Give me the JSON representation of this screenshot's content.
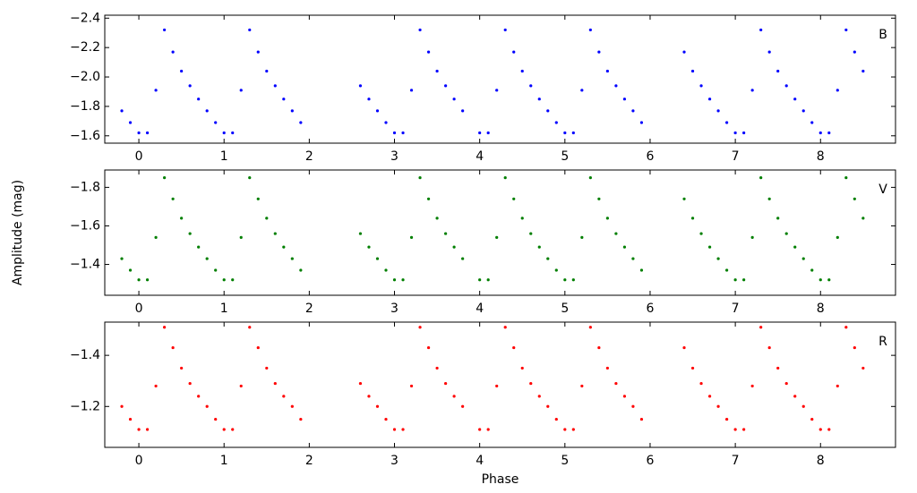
{
  "chart_data": [
    {
      "type": "scatter",
      "xlim": [
        -0.4,
        8.88
      ],
      "ylim": [
        -1.55,
        -2.42
      ],
      "xticks": [
        0,
        1,
        2,
        3,
        4,
        5,
        6,
        7,
        8
      ],
      "yticks": [
        {
          "value": -1.6,
          "label": "−1.6"
        },
        {
          "value": -1.8,
          "label": "−1.8"
        },
        {
          "value": -2.0,
          "label": "−2.0"
        },
        {
          "value": -2.2,
          "label": "−2.2"
        },
        {
          "value": -2.4,
          "label": "−2.4"
        }
      ],
      "series": [
        {
          "name": "B",
          "color": "#0000ff",
          "x": [
            -0.2,
            -0.1,
            0,
            0.1,
            0.2,
            0.3,
            0.4,
            0.5,
            0.6,
            0.7,
            0.8,
            0.9,
            1,
            1.1,
            1.2,
            1.3,
            1.4,
            1.5,
            1.6,
            1.7,
            1.8,
            1.9,
            2.6,
            2.7,
            2.8,
            2.9,
            3,
            3.1,
            3.2,
            3.3,
            3.4,
            3.5,
            3.6,
            3.7,
            3.8,
            4,
            4.1,
            4.2,
            4.3,
            4.4,
            4.5,
            4.6,
            4.7,
            4.8,
            4.9,
            5,
            5.1,
            5.2,
            5.3,
            5.4,
            5.5,
            5.6,
            5.7,
            5.8,
            5.9,
            6.4,
            6.5,
            6.6,
            6.7,
            6.8,
            6.9,
            7,
            7.1,
            7.2,
            7.3,
            7.4,
            7.5,
            7.6,
            7.7,
            7.8,
            7.9,
            8,
            8.1,
            8.2,
            8.3,
            8.4,
            8.5
          ],
          "values": [
            -1.77,
            -1.69,
            -1.62,
            -1.62,
            -1.91,
            -2.32,
            -2.17,
            -2.04,
            -1.94,
            -1.85,
            -1.77,
            -1.69,
            -1.62,
            -1.62,
            -1.91,
            -2.32,
            -2.17,
            -2.04,
            -1.94,
            -1.85,
            -1.77,
            -1.69,
            -1.94,
            -1.85,
            -1.77,
            -1.69,
            -1.62,
            -1.62,
            -1.91,
            -2.32,
            -2.17,
            -2.04,
            -1.94,
            -1.85,
            -1.77,
            -1.62,
            -1.62,
            -1.91,
            -2.32,
            -2.17,
            -2.04,
            -1.94,
            -1.85,
            -1.77,
            -1.69,
            -1.62,
            -1.62,
            -1.91,
            -2.32,
            -2.17,
            -2.04,
            -1.94,
            -1.85,
            -1.77,
            -1.69,
            -2.17,
            -2.04,
            -1.94,
            -1.85,
            -1.77,
            -1.69,
            -1.62,
            -1.62,
            -1.91,
            -2.32,
            -2.17,
            -2.04,
            -1.94,
            -1.85,
            -1.77,
            -1.69,
            -1.62,
            -1.62,
            -1.91,
            -2.32,
            -2.17,
            -2.04
          ]
        }
      ]
    },
    {
      "type": "scatter",
      "xlim": [
        -0.4,
        8.88
      ],
      "ylim": [
        -1.24,
        -1.89
      ],
      "ylabel": "Amplitude (mag)",
      "xticks": [
        0,
        1,
        2,
        3,
        4,
        5,
        6,
        7,
        8
      ],
      "yticks": [
        {
          "value": -1.4,
          "label": "−1.4"
        },
        {
          "value": -1.6,
          "label": "−1.6"
        },
        {
          "value": -1.8,
          "label": "−1.8"
        }
      ],
      "series": [
        {
          "name": "V",
          "color": "#007f00",
          "x": [
            -0.2,
            -0.1,
            0,
            0.1,
            0.2,
            0.3,
            0.4,
            0.5,
            0.6,
            0.7,
            0.8,
            0.9,
            1,
            1.1,
            1.2,
            1.3,
            1.4,
            1.5,
            1.6,
            1.7,
            1.8,
            1.9,
            2.6,
            2.7,
            2.8,
            2.9,
            3,
            3.1,
            3.2,
            3.3,
            3.4,
            3.5,
            3.6,
            3.7,
            3.8,
            4,
            4.1,
            4.2,
            4.3,
            4.4,
            4.5,
            4.6,
            4.7,
            4.8,
            4.9,
            5,
            5.1,
            5.2,
            5.3,
            5.4,
            5.5,
            5.6,
            5.7,
            5.8,
            5.9,
            6.4,
            6.5,
            6.6,
            6.7,
            6.8,
            6.9,
            7,
            7.1,
            7.2,
            7.3,
            7.4,
            7.5,
            7.6,
            7.7,
            7.8,
            7.9,
            8,
            8.1,
            8.2,
            8.3,
            8.4,
            8.5
          ],
          "values": [
            -1.43,
            -1.37,
            -1.32,
            -1.32,
            -1.54,
            -1.85,
            -1.74,
            -1.64,
            -1.56,
            -1.49,
            -1.43,
            -1.37,
            -1.32,
            -1.32,
            -1.54,
            -1.85,
            -1.74,
            -1.64,
            -1.56,
            -1.49,
            -1.43,
            -1.37,
            -1.56,
            -1.49,
            -1.43,
            -1.37,
            -1.32,
            -1.32,
            -1.54,
            -1.85,
            -1.74,
            -1.64,
            -1.56,
            -1.49,
            -1.43,
            -1.32,
            -1.32,
            -1.54,
            -1.85,
            -1.74,
            -1.64,
            -1.56,
            -1.49,
            -1.43,
            -1.37,
            -1.32,
            -1.32,
            -1.54,
            -1.85,
            -1.74,
            -1.64,
            -1.56,
            -1.49,
            -1.43,
            -1.37,
            -1.74,
            -1.64,
            -1.56,
            -1.49,
            -1.43,
            -1.37,
            -1.32,
            -1.32,
            -1.54,
            -1.85,
            -1.74,
            -1.64,
            -1.56,
            -1.49,
            -1.43,
            -1.37,
            -1.32,
            -1.32,
            -1.54,
            -1.85,
            -1.74,
            -1.64
          ]
        }
      ]
    },
    {
      "type": "scatter",
      "xlim": [
        -0.4,
        8.88
      ],
      "ylim": [
        -1.04,
        -1.53
      ],
      "xlabel": "Phase",
      "xticks": [
        0,
        1,
        2,
        3,
        4,
        5,
        6,
        7,
        8
      ],
      "yticks": [
        {
          "value": -1.2,
          "label": "−1.2"
        },
        {
          "value": -1.4,
          "label": "−1.4"
        }
      ],
      "series": [
        {
          "name": "R",
          "color": "#ff0000",
          "x": [
            -0.2,
            -0.1,
            0,
            0.1,
            0.2,
            0.3,
            0.4,
            0.5,
            0.6,
            0.7,
            0.8,
            0.9,
            1,
            1.1,
            1.2,
            1.3,
            1.4,
            1.5,
            1.6,
            1.7,
            1.8,
            1.9,
            2.6,
            2.7,
            2.8,
            2.9,
            3,
            3.1,
            3.2,
            3.3,
            3.4,
            3.5,
            3.6,
            3.7,
            3.8,
            4,
            4.1,
            4.2,
            4.3,
            4.4,
            4.5,
            4.6,
            4.7,
            4.8,
            4.9,
            5,
            5.1,
            5.2,
            5.3,
            5.4,
            5.5,
            5.6,
            5.7,
            5.8,
            5.9,
            6.4,
            6.5,
            6.6,
            6.7,
            6.8,
            6.9,
            7,
            7.1,
            7.2,
            7.3,
            7.4,
            7.5,
            7.6,
            7.7,
            7.8,
            7.9,
            8,
            8.1,
            8.2,
            8.3,
            8.4,
            8.5
          ],
          "values": [
            -1.2,
            -1.15,
            -1.11,
            -1.11,
            -1.28,
            -1.51,
            -1.43,
            -1.35,
            -1.29,
            -1.24,
            -1.2,
            -1.15,
            -1.11,
            -1.11,
            -1.28,
            -1.51,
            -1.43,
            -1.35,
            -1.29,
            -1.24,
            -1.2,
            -1.15,
            -1.29,
            -1.24,
            -1.2,
            -1.15,
            -1.11,
            -1.11,
            -1.28,
            -1.51,
            -1.43,
            -1.35,
            -1.29,
            -1.24,
            -1.2,
            -1.11,
            -1.11,
            -1.28,
            -1.51,
            -1.43,
            -1.35,
            -1.29,
            -1.24,
            -1.2,
            -1.15,
            -1.11,
            -1.11,
            -1.28,
            -1.51,
            -1.43,
            -1.35,
            -1.29,
            -1.24,
            -1.2,
            -1.15,
            -1.43,
            -1.35,
            -1.29,
            -1.24,
            -1.2,
            -1.15,
            -1.11,
            -1.11,
            -1.28,
            -1.51,
            -1.43,
            -1.35,
            -1.29,
            -1.24,
            -1.2,
            -1.15,
            -1.11,
            -1.11,
            -1.28,
            -1.51,
            -1.43,
            -1.35
          ]
        }
      ]
    }
  ]
}
